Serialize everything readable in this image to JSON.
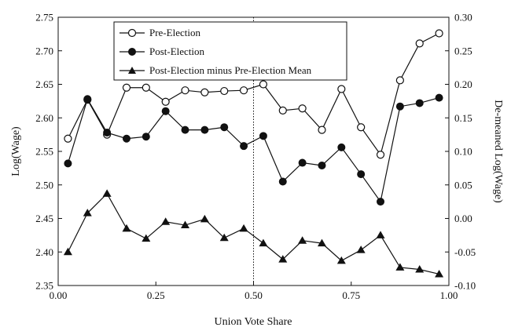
{
  "chart_data": {
    "type": "line",
    "xlabel": "Union Vote Share",
    "ylabel_left": "Log(Wage)",
    "ylabel_right": "De-meaned Log(Wage)",
    "xlim": [
      0,
      1
    ],
    "ylim_left": [
      2.35,
      2.75
    ],
    "ylim_right": [
      -0.1,
      0.3
    ],
    "x_ticks": [
      "0.00",
      "0.25",
      "0.50",
      "0.75",
      "1.00"
    ],
    "y_left_ticks": [
      "2.35",
      "2.40",
      "2.45",
      "2.50",
      "2.55",
      "2.60",
      "2.65",
      "2.70",
      "2.75"
    ],
    "y_right_ticks": [
      "-0.10",
      "-0.05",
      "0.00",
      "0.05",
      "0.10",
      "0.15",
      "0.20",
      "0.25",
      "0.30"
    ],
    "vertical_reference_line_x": 0.5,
    "legend_position": "top-center",
    "x": [
      0.025,
      0.075,
      0.125,
      0.175,
      0.225,
      0.275,
      0.325,
      0.375,
      0.425,
      0.475,
      0.525,
      0.575,
      0.625,
      0.675,
      0.725,
      0.775,
      0.825,
      0.875,
      0.925,
      0.975
    ],
    "series": [
      {
        "name": "Pre-Election",
        "marker": "open-circle",
        "axis": "left",
        "values": [
          2.569,
          2.627,
          2.575,
          2.645,
          2.645,
          2.624,
          2.641,
          2.638,
          2.64,
          2.641,
          2.65,
          2.611,
          2.614,
          2.582,
          2.643,
          2.586,
          2.545,
          2.656,
          2.711,
          2.726
        ]
      },
      {
        "name": "Post-Election",
        "marker": "filled-circle",
        "axis": "left",
        "values": [
          2.532,
          2.628,
          2.578,
          2.569,
          2.572,
          2.61,
          2.582,
          2.582,
          2.586,
          2.558,
          2.573,
          2.505,
          2.533,
          2.529,
          2.556,
          2.516,
          2.475,
          2.617,
          2.622,
          2.63
        ]
      },
      {
        "name": "Post-Election minus Pre-Election Mean",
        "marker": "filled-triangle",
        "axis": "right",
        "values": [
          -0.05,
          0.008,
          0.037,
          -0.015,
          -0.03,
          -0.005,
          -0.01,
          -0.001,
          -0.029,
          -0.015,
          -0.037,
          -0.061,
          -0.033,
          -0.037,
          -0.063,
          -0.047,
          -0.025,
          -0.073,
          -0.076,
          -0.083
        ]
      }
    ]
  }
}
